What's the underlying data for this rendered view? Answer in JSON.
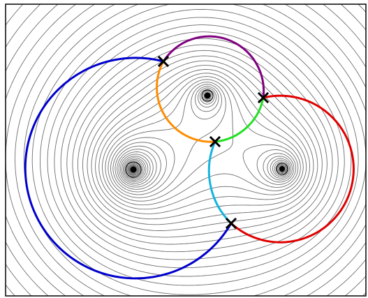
{
  "colors": {
    "background": "#ffffff",
    "frame": "#000000",
    "contour": "#6e6e6e",
    "marker": "#000000"
  },
  "arcs": [
    {
      "name": "arc-blue",
      "color": "#0000cc"
    },
    {
      "name": "arc-purple",
      "color": "#800080"
    },
    {
      "name": "arc-orange",
      "color": "#ff8c00"
    },
    {
      "name": "arc-green",
      "color": "#22e022"
    },
    {
      "name": "arc-cyan",
      "color": "#14b4e0"
    },
    {
      "name": "arc-red",
      "color": "#e00000"
    }
  ],
  "markers": {
    "centers": [
      "center-left",
      "center-top",
      "center-right"
    ],
    "intersections": [
      "intersection-1",
      "intersection-2",
      "intersection-3",
      "intersection-4"
    ]
  }
}
